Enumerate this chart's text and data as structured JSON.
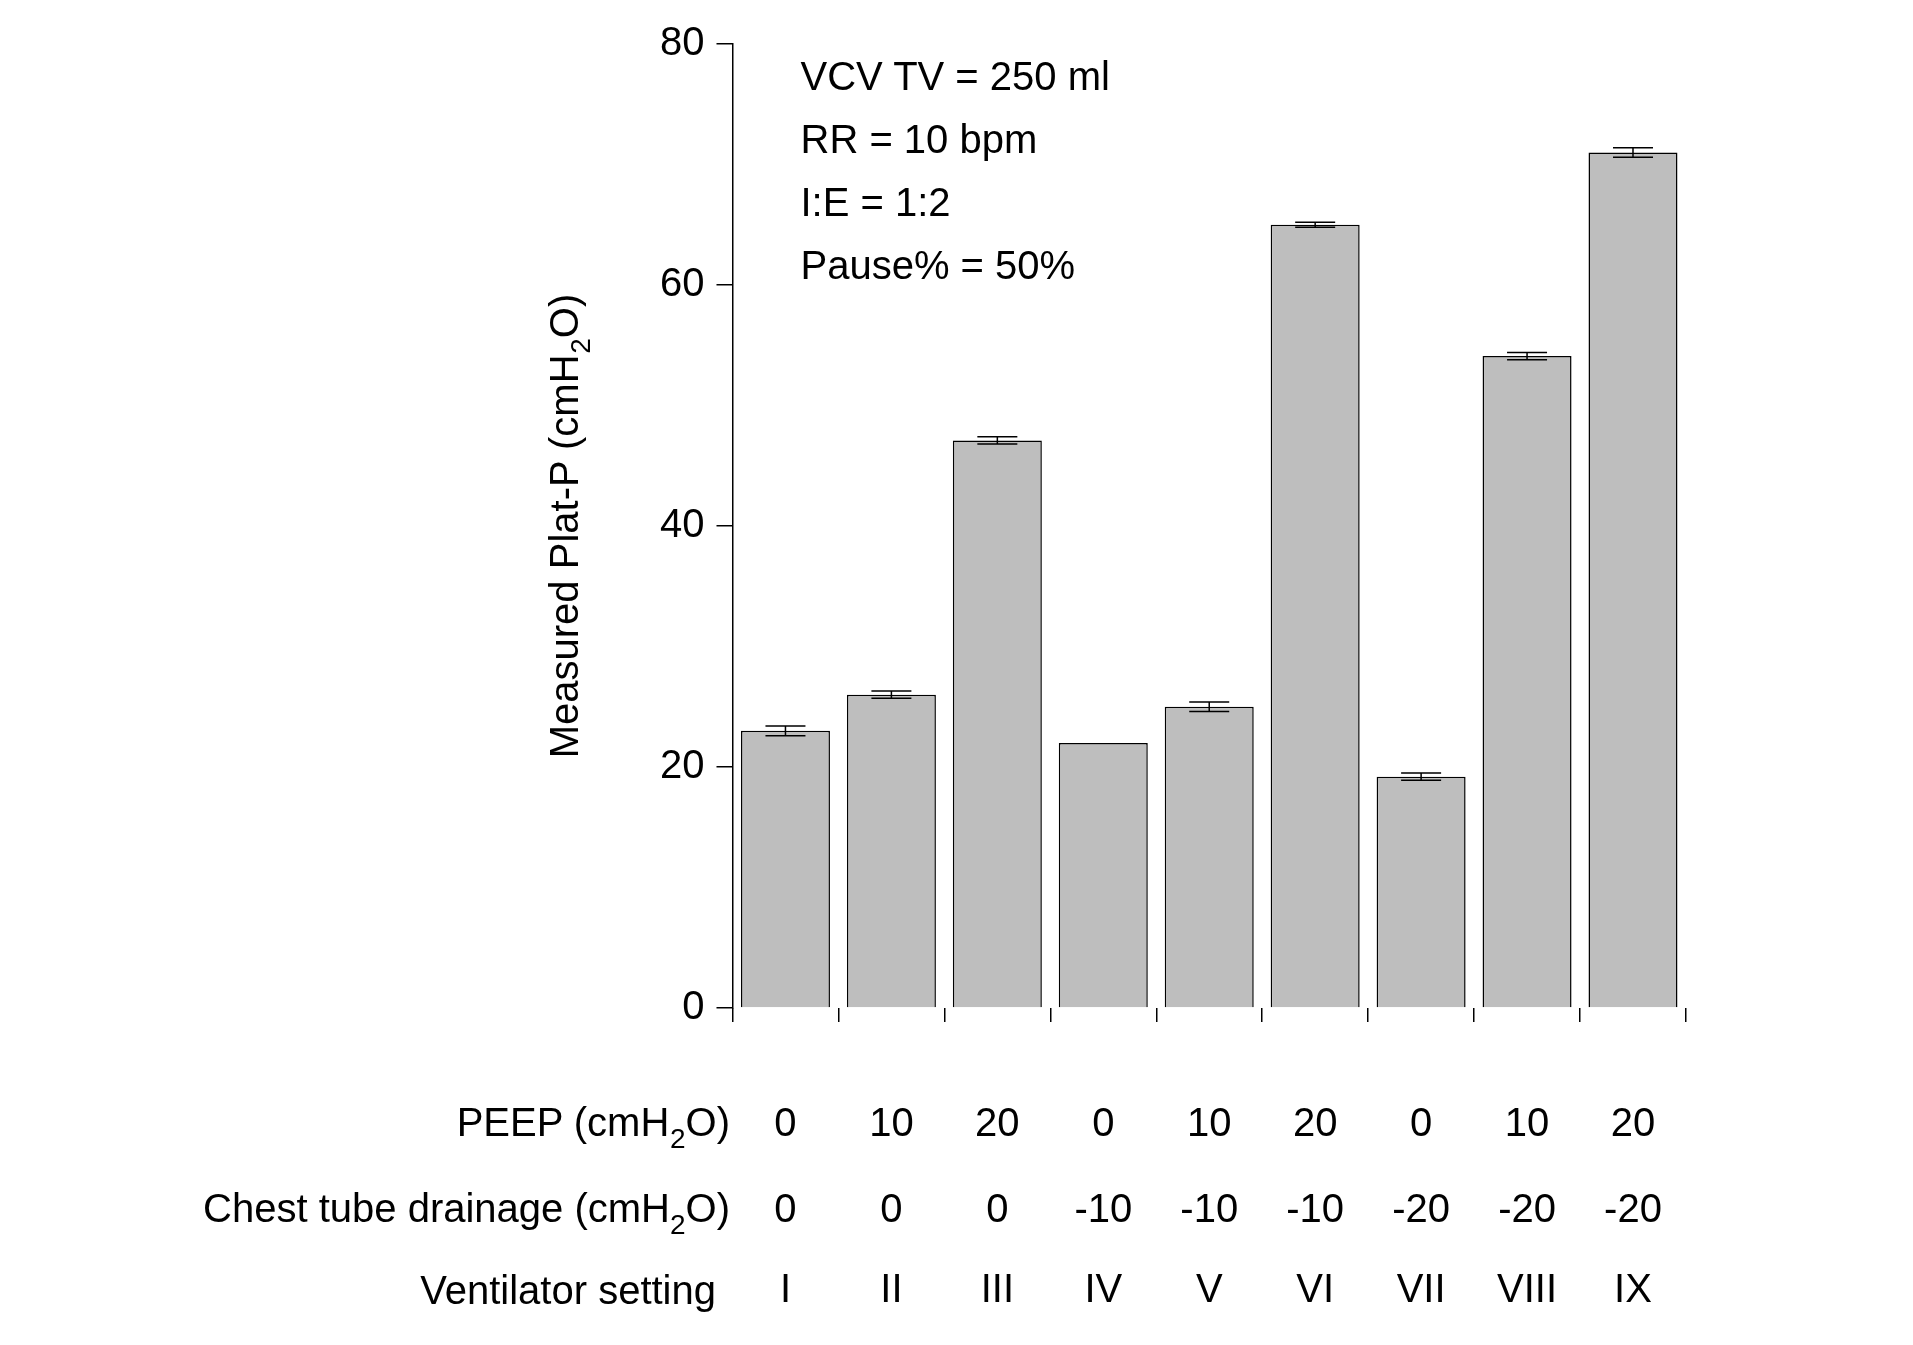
{
  "chart_data": {
    "type": "bar",
    "ylabel": "Measured Plat-P (cmH$_{2}$O)",
    "categories": [
      "I",
      "II",
      "III",
      "IV",
      "V",
      "VI",
      "VII",
      "VIII",
      "IX"
    ],
    "values": [
      23,
      26,
      47.1,
      22,
      25,
      65,
      19.2,
      54.1,
      71
    ],
    "errors": [
      0.4,
      0.3,
      0.3,
      null,
      0.4,
      0.2,
      0.3,
      0.3,
      0.4
    ],
    "color": "#bebebe",
    "ylim": [
      0,
      80
    ],
    "yticks": [
      0,
      20,
      40,
      60,
      80
    ],
    "grid": false,
    "legend": false,
    "annotations": [
      "VCV TV = 250 ml",
      "RR = 10 bpm",
      "I:E = 1:2",
      "Pause% = 50%",
      "PEEP (cmH$_{2}$O)",
      "0",
      "10",
      "20",
      "0",
      "10",
      "20",
      "0",
      "10",
      "20",
      "Chest tube drainage (cmH$_{2}$O)",
      "0",
      "0",
      "0",
      "-10",
      "-10",
      "-10",
      "-20",
      "-20",
      "-20",
      "Ventilator setting"
    ]
  }
}
